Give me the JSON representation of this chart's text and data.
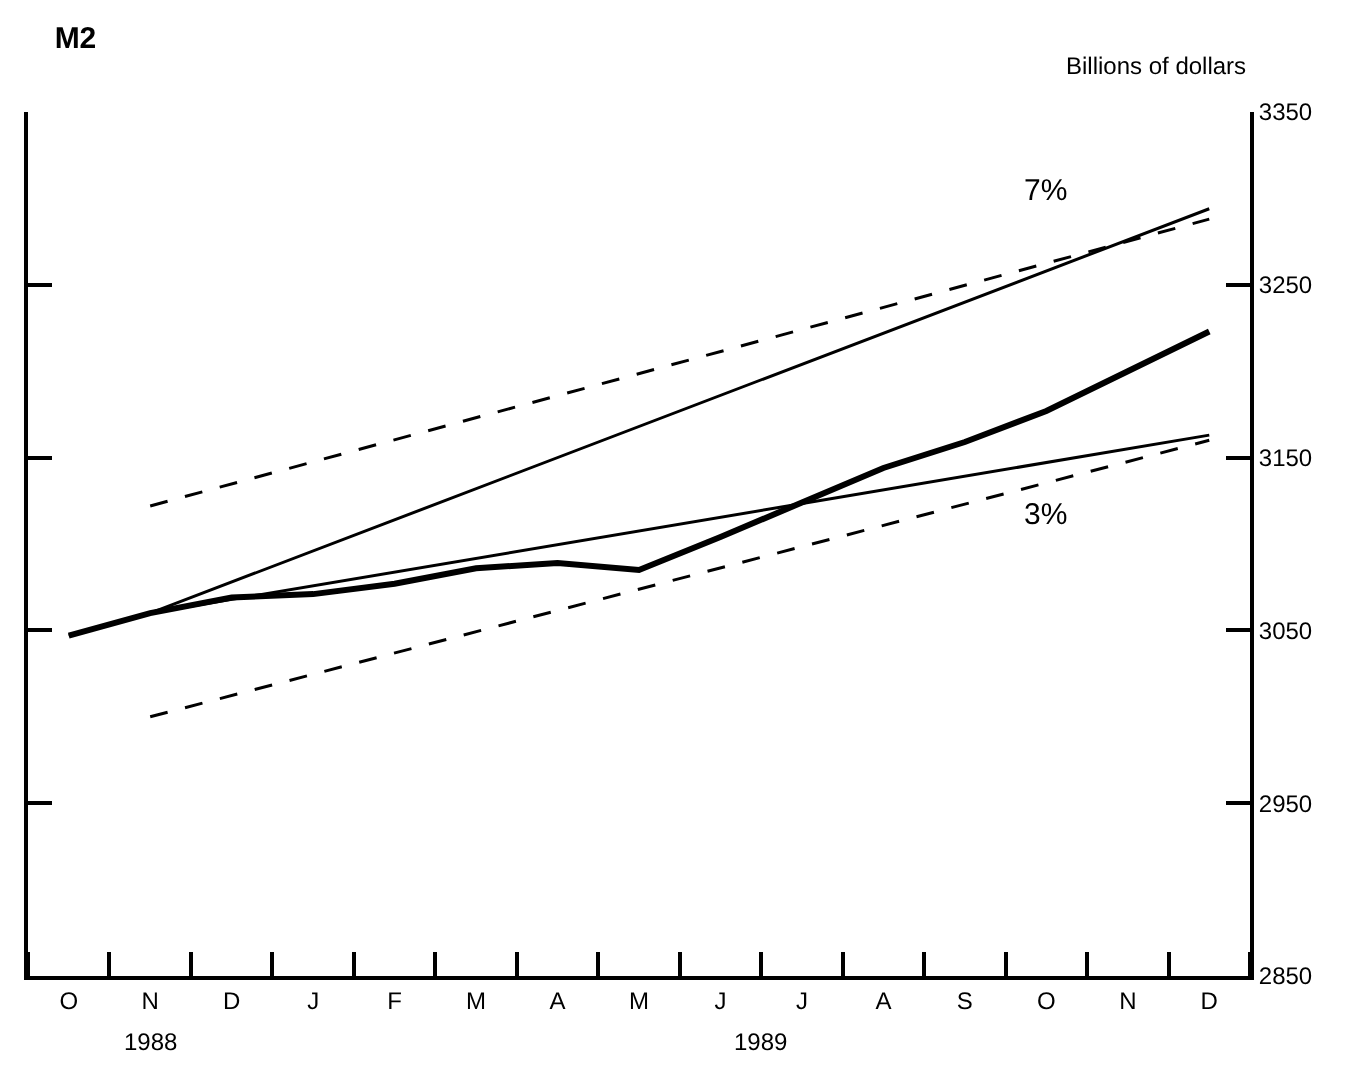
{
  "chart_data": {
    "type": "line",
    "title": "M2",
    "ylabel": "Billions of dollars",
    "categories": [
      "O",
      "N",
      "D",
      "J",
      "F",
      "M",
      "A",
      "M",
      "J",
      "J",
      "A",
      "S",
      "O",
      "N",
      "D"
    ],
    "ylim": [
      2850,
      3350
    ],
    "yticks": [
      2850,
      2950,
      3050,
      3150,
      3250,
      3350
    ],
    "annotations": [
      "1988",
      "1989"
    ],
    "grid": false,
    "legend": false,
    "marker": "none",
    "series": [
      {
        "color": "#000000",
        "values": [
          3047,
          3060,
          3069,
          3071,
          3077,
          3086,
          3089,
          3085,
          3104,
          3124,
          3144,
          3159,
          3177,
          3200,
          3223
        ]
      },
      {
        "name": "7%",
        "color": "#000000",
        "values": [
          3047,
          3060,
          null,
          null,
          null,
          null,
          null,
          null,
          null,
          null,
          null,
          null,
          null,
          null,
          3294
        ]
      },
      {
        "name": "3%",
        "color": "#000000",
        "values": [
          null,
          3060,
          null,
          null,
          null,
          null,
          null,
          null,
          null,
          null,
          null,
          null,
          null,
          null,
          3163
        ]
      },
      {
        "color": "#000000",
        "line_style": "dashed",
        "values": [
          null,
          3122,
          null,
          null,
          null,
          null,
          null,
          null,
          null,
          null,
          null,
          null,
          null,
          null,
          3288
        ]
      },
      {
        "color": "#000000",
        "line_style": "dashed",
        "values": [
          null,
          3000,
          null,
          null,
          null,
          null,
          null,
          null,
          null,
          null,
          null,
          null,
          null,
          null,
          3160
        ]
      }
    ]
  }
}
